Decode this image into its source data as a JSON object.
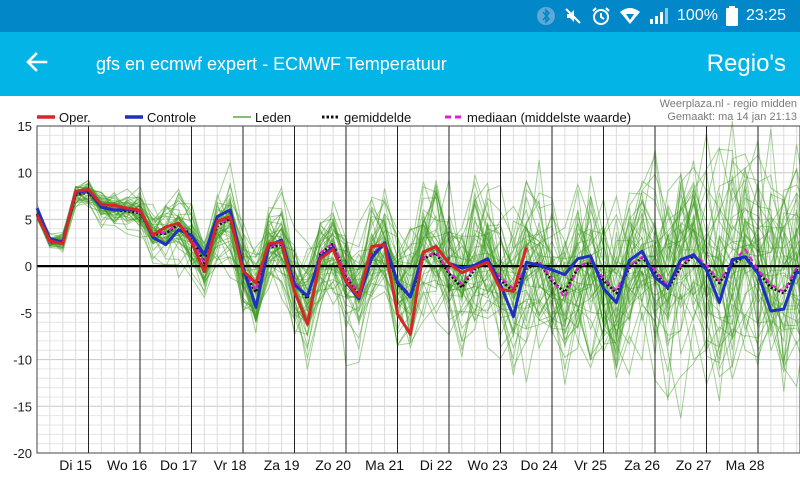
{
  "status_bar": {
    "battery": "100%",
    "time": "23:25",
    "icons": [
      "bluetooth-icon",
      "mute-icon",
      "alarm-icon",
      "wifi-icon",
      "signal-icon",
      "battery-icon"
    ]
  },
  "app_bar": {
    "back_icon": "arrow-left-icon",
    "title": "gfs en ecmwf expert - ECMWF Temperatuur",
    "action_label": "Regio's"
  },
  "chart_data": {
    "type": "line",
    "source": "Weerplaza.nl - regio midden",
    "made": "Gemaakt: ma 14 jan 21:13",
    "ylim": [
      -20,
      15
    ],
    "y_ticks": [
      15,
      10,
      5,
      0,
      -5,
      -10,
      -15,
      -20
    ],
    "x_range": [
      0,
      15.5
    ],
    "day_labels": [
      "Di 15",
      "Wo 16",
      "Do 17",
      "Vr 18",
      "Za 19",
      "Zo 20",
      "Ma 21",
      "Di 22",
      "Wo 23",
      "Do 24",
      "Vr 25",
      "Za 26",
      "Zo 27",
      "Ma 28"
    ],
    "grid": true,
    "colors": {
      "oper": "#d62728",
      "controle": "#1f2fbf",
      "leden": "#3a9a1a",
      "gemiddelde": "#111111",
      "mediaan": "#e020d0"
    },
    "legend": [
      {
        "key": "oper",
        "label": "Oper.",
        "style": "thick"
      },
      {
        "key": "controle",
        "label": "Controle",
        "style": "thick"
      },
      {
        "key": "leden",
        "label": "Leden",
        "style": "thin"
      },
      {
        "key": "gemiddelde",
        "label": "gemiddelde",
        "style": "dotted"
      },
      {
        "key": "mediaan",
        "label": "mediaan (middelste waarde)",
        "style": "dashed"
      }
    ],
    "series": [
      {
        "name": "Oper.",
        "key": "oper",
        "x": [
          0,
          0.25,
          0.5,
          0.75,
          1,
          1.25,
          1.5,
          1.75,
          2,
          2.25,
          2.5,
          2.75,
          3,
          3.25,
          3.5,
          3.75,
          4,
          4.25,
          4.5,
          4.75,
          5,
          5.25,
          5.5,
          5.75,
          6,
          6.25,
          6.5,
          6.75,
          7,
          7.25,
          7.5,
          7.75,
          8,
          8.25,
          8.5,
          8.75,
          9,
          9.25,
          9.5
        ],
        "values": [
          5.5,
          2.7,
          2.4,
          8.0,
          8.2,
          6.6,
          6.5,
          6.2,
          6.0,
          3.3,
          4.2,
          4.6,
          2.6,
          -0.6,
          4.8,
          5.3,
          -0.5,
          -1.8,
          2.4,
          2.6,
          -2.7,
          -6.2,
          0.8,
          1.8,
          -1.6,
          -3.3,
          2.1,
          2.3,
          -5.1,
          -7.3,
          1.5,
          2.1,
          0.3,
          -0.7,
          -0.1,
          0.4,
          -2.5,
          -2.7,
          2.0
        ]
      },
      {
        "name": "Controle",
        "key": "controle",
        "x": [
          0,
          0.25,
          0.5,
          0.75,
          1,
          1.25,
          1.5,
          1.75,
          2,
          2.25,
          2.5,
          2.75,
          3,
          3.25,
          3.5,
          3.75,
          4,
          4.25,
          4.5,
          4.75,
          5,
          5.25,
          5.5,
          5.75,
          6,
          6.25,
          6.5,
          6.75,
          7,
          7.25,
          7.5,
          7.75,
          8,
          8.25,
          8.5,
          8.75,
          9,
          9.25,
          9.5,
          9.75,
          10,
          10.25,
          10.5,
          10.75,
          11,
          11.25,
          11.5,
          11.75,
          12,
          12.25,
          12.5,
          12.75,
          13,
          13.25,
          13.5,
          13.75,
          14,
          14.25,
          14.5,
          14.75,
          15,
          15.25,
          15.5
        ],
        "values": [
          6.2,
          2.9,
          2.6,
          7.9,
          8.1,
          6.3,
          6.0,
          6.1,
          6.0,
          3.1,
          2.3,
          3.9,
          3.3,
          1.2,
          5.3,
          6.0,
          -0.1,
          -4.4,
          2.2,
          2.8,
          -2.0,
          -3.2,
          1.0,
          2.0,
          -1.7,
          -3.5,
          0.9,
          2.5,
          -1.7,
          -3.3,
          1.5,
          2.1,
          0.3,
          -0.2,
          0.1,
          0.8,
          -2.0,
          -5.4,
          0.4,
          0.1,
          -0.4,
          -0.9,
          0.8,
          1.1,
          -2.4,
          -3.9,
          0.6,
          1.6,
          -1.2,
          -2.3,
          0.7,
          1.2,
          -0.4,
          -3.9,
          0.7,
          1.0,
          -0.8,
          -4.8,
          -4.6,
          -0.6,
          -1.1,
          -3.8,
          -3.3
        ]
      },
      {
        "name": "gemiddelde",
        "key": "gemiddelde",
        "x": [
          0,
          0.25,
          0.5,
          0.75,
          1,
          1.25,
          1.5,
          1.75,
          2,
          2.25,
          2.5,
          2.75,
          3,
          3.25,
          3.5,
          3.75,
          4,
          4.25,
          4.5,
          4.75,
          5,
          5.25,
          5.5,
          5.75,
          6,
          6.25,
          6.5,
          6.75,
          7,
          7.25,
          7.5,
          7.75,
          8,
          8.25,
          8.5,
          8.75,
          9,
          9.25,
          9.5,
          9.75,
          10,
          10.25,
          10.5,
          10.75,
          11,
          11.25,
          11.5,
          11.75,
          12,
          12.25,
          12.5,
          12.75,
          13,
          13.25,
          13.5,
          13.75,
          14,
          14.25,
          14.5,
          14.75,
          15,
          15.25,
          15.5
        ],
        "values": [
          5.6,
          2.6,
          2.6,
          7.6,
          7.9,
          6.4,
          6.0,
          5.9,
          5.7,
          3.4,
          3.5,
          4.5,
          3.2,
          0.3,
          4.3,
          5.1,
          -0.4,
          -2.8,
          2.0,
          2.3,
          -1.8,
          -3.5,
          1.3,
          2.4,
          -1.2,
          -3.0,
          1.2,
          2.3,
          -1.9,
          -3.3,
          0.8,
          1.4,
          -0.8,
          -2.3,
          -0.3,
          0.4,
          -1.5,
          -2.7,
          -0.3,
          0.4,
          -1.6,
          -2.8,
          -0.2,
          0.4,
          -1.5,
          -2.9,
          -0.2,
          0.9,
          -0.6,
          -2.4,
          -0.1,
          1.1,
          -0.1,
          -1.8,
          0.2,
          1.1,
          -0.6,
          -2.3,
          -2.9,
          -0.4,
          -1.3,
          -2.8,
          -2.5
        ]
      },
      {
        "name": "mediaan (middelste waarde)",
        "key": "mediaan",
        "x": [
          0,
          0.25,
          0.5,
          0.75,
          1,
          1.25,
          1.5,
          1.75,
          2,
          2.25,
          2.5,
          2.75,
          3,
          3.25,
          3.5,
          3.75,
          4,
          4.25,
          4.5,
          4.75,
          5,
          5.25,
          5.5,
          5.75,
          6,
          6.25,
          6.5,
          6.75,
          7,
          7.25,
          7.5,
          7.75,
          8,
          8.25,
          8.5,
          8.75,
          9,
          9.25,
          9.5,
          9.75,
          10,
          10.25,
          10.5,
          10.75,
          11,
          11.25,
          11.5,
          11.75,
          12,
          12.25,
          12.5,
          12.75,
          13,
          13.25,
          13.5,
          13.75,
          14,
          14.25,
          14.5,
          14.75,
          15,
          15.25,
          15.5
        ],
        "values": [
          5.5,
          2.5,
          2.5,
          7.7,
          8.0,
          6.5,
          6.1,
          6.0,
          5.8,
          3.5,
          3.6,
          4.6,
          3.1,
          0.2,
          4.4,
          5.2,
          -0.2,
          -2.6,
          2.1,
          2.4,
          -1.6,
          -3.3,
          1.4,
          2.5,
          -1.0,
          -2.8,
          1.3,
          2.4,
          -1.7,
          -3.1,
          0.9,
          1.5,
          -0.6,
          -1.9,
          -0.1,
          0.5,
          -1.2,
          -2.4,
          -0.1,
          0.5,
          -1.4,
          -3.4,
          -0.1,
          0.6,
          -1.3,
          -2.6,
          0.0,
          1.0,
          -0.4,
          -2.1,
          0.1,
          1.3,
          0.1,
          -1.6,
          0.4,
          1.8,
          -0.4,
          -2.0,
          -2.7,
          -0.2,
          -1.1,
          -2.6,
          -2.3
        ]
      }
    ],
    "leden": {
      "count": 50,
      "note": "ensemble members drawn around the mean with spread growing over time"
    }
  }
}
